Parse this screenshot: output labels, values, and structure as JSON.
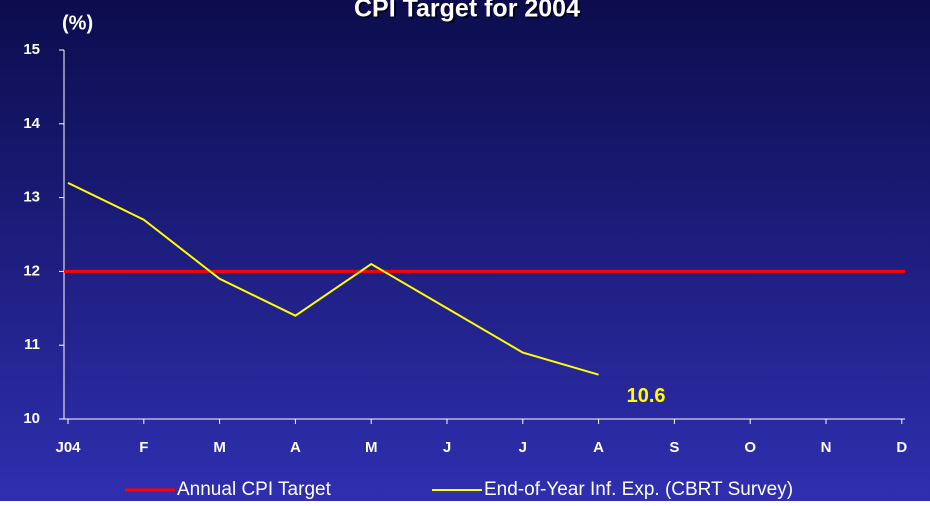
{
  "chart_data": {
    "type": "line",
    "title": "CPI Target for 2004",
    "y_label": "(%)",
    "categories": [
      "J04",
      "F",
      "M",
      "A",
      "M",
      "J",
      "J",
      "A",
      "S",
      "O",
      "N",
      "D"
    ],
    "series": [
      {
        "name": "Annual CPI Target",
        "color": "#ff0000",
        "values": [
          12,
          12,
          12,
          12,
          12,
          12,
          12,
          12,
          12,
          12,
          12,
          12
        ]
      },
      {
        "name": "End-of-Year Inf. Exp. (CBRT Survey)",
        "color": "#ffff00",
        "values": [
          13.2,
          12.7,
          11.9,
          11.4,
          12.1,
          11.5,
          10.9,
          10.6,
          null,
          null,
          null,
          null
        ]
      }
    ],
    "annotation": "10.6",
    "ylim": [
      10,
      15
    ],
    "yticks": [
      10,
      11,
      12,
      13,
      14,
      15
    ],
    "legend": "bottom"
  }
}
